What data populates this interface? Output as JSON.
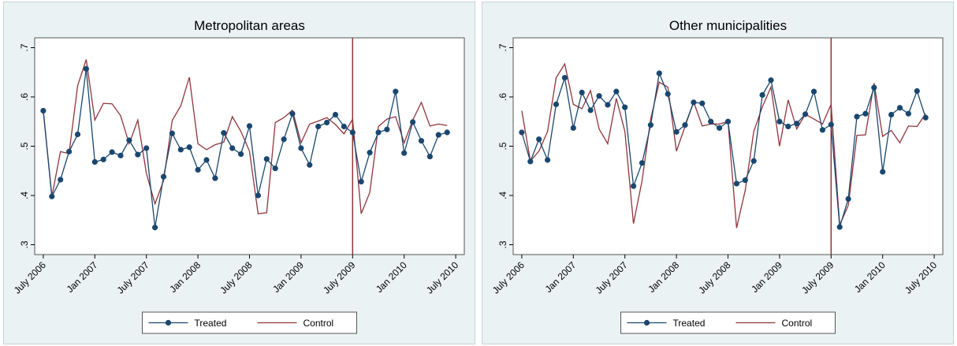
{
  "chart_data": [
    {
      "type": "line",
      "title": "Metropolitan areas",
      "x": [
        "2006-07",
        "2006-08",
        "2006-09",
        "2006-10",
        "2006-11",
        "2006-12",
        "2007-01",
        "2007-02",
        "2007-03",
        "2007-04",
        "2007-05",
        "2007-06",
        "2007-07",
        "2007-08",
        "2007-09",
        "2007-10",
        "2007-11",
        "2007-12",
        "2008-01",
        "2008-02",
        "2008-03",
        "2008-04",
        "2008-05",
        "2008-06",
        "2008-07",
        "2008-08",
        "2008-09",
        "2008-10",
        "2008-11",
        "2008-12",
        "2009-01",
        "2009-02",
        "2009-03",
        "2009-04",
        "2009-05",
        "2009-06",
        "2009-07",
        "2009-08",
        "2009-09",
        "2009-10",
        "2009-11",
        "2009-12",
        "2010-01",
        "2010-02",
        "2010-03",
        "2010-04",
        "2010-05",
        "2010-06"
      ],
      "series": [
        {
          "name": "Treated",
          "color": "#1a476f",
          "marker": true,
          "values": [
            0.572,
            0.398,
            0.432,
            0.489,
            0.524,
            0.657,
            0.468,
            0.473,
            0.488,
            0.481,
            0.512,
            0.483,
            0.496,
            0.335,
            0.438,
            0.526,
            0.493,
            0.498,
            0.452,
            0.472,
            0.435,
            0.527,
            0.496,
            0.484,
            0.541,
            0.4,
            0.474,
            0.455,
            0.514,
            0.566,
            0.496,
            0.462,
            0.54,
            0.548,
            0.564,
            0.54,
            0.528,
            0.428,
            0.487,
            0.528,
            0.534,
            0.611,
            0.486,
            0.549,
            0.511,
            0.479,
            0.523,
            0.528
          ]
        },
        {
          "name": "Control",
          "color": "#90353b",
          "marker": false,
          "values": [
            0.572,
            0.398,
            0.489,
            0.485,
            0.623,
            0.676,
            0.553,
            0.587,
            0.586,
            0.562,
            0.505,
            0.553,
            0.445,
            0.383,
            0.43,
            0.552,
            0.582,
            0.64,
            0.505,
            0.493,
            0.503,
            0.508,
            0.56,
            0.53,
            0.49,
            0.363,
            0.365,
            0.548,
            0.558,
            0.573,
            0.507,
            0.545,
            0.551,
            0.558,
            0.544,
            0.525,
            0.555,
            0.363,
            0.406,
            0.54,
            0.555,
            0.56,
            0.507,
            0.553,
            0.589,
            0.541,
            0.545,
            0.542
          ]
        }
      ],
      "xlim": [
        "2006-06",
        "2010-08"
      ],
      "xticks": [
        {
          "value": "2006-07",
          "label": "July 2006"
        },
        {
          "value": "2007-01",
          "label": "Jan 2007"
        },
        {
          "value": "2007-07",
          "label": "July 2007"
        },
        {
          "value": "2008-01",
          "label": "Jan 2008"
        },
        {
          "value": "2008-07",
          "label": "July 2008"
        },
        {
          "value": "2009-01",
          "label": "Jan 2009"
        },
        {
          "value": "2009-07",
          "label": "July 2009"
        },
        {
          "value": "2010-01",
          "label": "Jan 2010"
        },
        {
          "value": "2010-07",
          "label": "July 2010"
        }
      ],
      "ylim": [
        0.28,
        0.72
      ],
      "yticks": [
        {
          "value": 0.3,
          "label": ".3"
        },
        {
          "value": 0.4,
          "label": ".4"
        },
        {
          "value": 0.5,
          "label": ".5"
        },
        {
          "value": 0.6,
          "label": ".6"
        },
        {
          "value": 0.7,
          "label": ".7"
        }
      ],
      "vline": "2009-07",
      "vline_color": "#90353b",
      "grid": false
    },
    {
      "type": "line",
      "title": "Other municipalities",
      "x": [
        "2006-07",
        "2006-08",
        "2006-09",
        "2006-10",
        "2006-11",
        "2006-12",
        "2007-01",
        "2007-02",
        "2007-03",
        "2007-04",
        "2007-05",
        "2007-06",
        "2007-07",
        "2007-08",
        "2007-09",
        "2007-10",
        "2007-11",
        "2007-12",
        "2008-01",
        "2008-02",
        "2008-03",
        "2008-04",
        "2008-05",
        "2008-06",
        "2008-07",
        "2008-08",
        "2008-09",
        "2008-10",
        "2008-11",
        "2008-12",
        "2009-01",
        "2009-02",
        "2009-03",
        "2009-04",
        "2009-05",
        "2009-06",
        "2009-07",
        "2009-08",
        "2009-09",
        "2009-10",
        "2009-11",
        "2009-12",
        "2010-01",
        "2010-02",
        "2010-03",
        "2010-04",
        "2010-05",
        "2010-06"
      ],
      "series": [
        {
          "name": "Treated",
          "color": "#1a476f",
          "marker": true,
          "values": [
            0.528,
            0.469,
            0.514,
            0.472,
            0.585,
            0.639,
            0.537,
            0.609,
            0.573,
            0.602,
            0.584,
            0.611,
            0.579,
            0.419,
            0.466,
            0.543,
            0.648,
            0.606,
            0.529,
            0.543,
            0.589,
            0.587,
            0.55,
            0.537,
            0.55,
            0.424,
            0.431,
            0.47,
            0.604,
            0.634,
            0.55,
            0.54,
            0.546,
            0.565,
            0.611,
            0.533,
            0.544,
            0.336,
            0.393,
            0.56,
            0.566,
            0.619,
            0.448,
            0.564,
            0.578,
            0.566,
            0.612,
            0.558
          ]
        },
        {
          "name": "Control",
          "color": "#90353b",
          "marker": false,
          "values": [
            0.572,
            0.47,
            0.49,
            0.53,
            0.639,
            0.667,
            0.585,
            0.576,
            0.613,
            0.535,
            0.505,
            0.597,
            0.53,
            0.343,
            0.43,
            0.555,
            0.63,
            0.62,
            0.49,
            0.54,
            0.59,
            0.541,
            0.545,
            0.545,
            0.55,
            0.334,
            0.41,
            0.53,
            0.58,
            0.62,
            0.5,
            0.594,
            0.535,
            0.565,
            0.555,
            0.545,
            0.585,
            0.34,
            0.38,
            0.522,
            0.523,
            0.628,
            0.52,
            0.532,
            0.507,
            0.541,
            0.54,
            0.566
          ]
        }
      ],
      "xlim": [
        "2006-06",
        "2010-08"
      ],
      "xticks": [
        {
          "value": "2006-07",
          "label": "July 2006"
        },
        {
          "value": "2007-01",
          "label": "Jan 2007"
        },
        {
          "value": "2007-07",
          "label": "July 2007"
        },
        {
          "value": "2008-01",
          "label": "Jan 2008"
        },
        {
          "value": "2008-07",
          "label": "July 2008"
        },
        {
          "value": "2009-01",
          "label": "Jan 2009"
        },
        {
          "value": "2009-07",
          "label": "July 2009"
        },
        {
          "value": "2010-01",
          "label": "Jan 2010"
        },
        {
          "value": "2010-07",
          "label": "July 2010"
        }
      ],
      "ylim": [
        0.28,
        0.72
      ],
      "yticks": [
        {
          "value": 0.3,
          "label": ".3"
        },
        {
          "value": 0.4,
          "label": ".4"
        },
        {
          "value": 0.5,
          "label": ".5"
        },
        {
          "value": 0.6,
          "label": ".6"
        },
        {
          "value": 0.7,
          "label": ".7"
        }
      ],
      "vline": "2009-07",
      "vline_color": "#90353b",
      "grid": false
    }
  ]
}
